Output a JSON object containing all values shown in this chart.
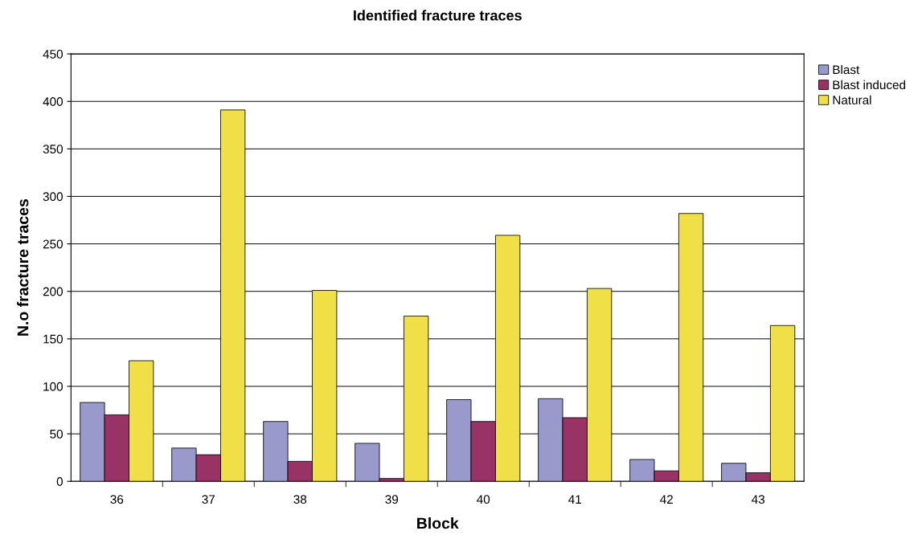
{
  "chart_data": {
    "type": "bar",
    "title": "Identified fracture traces",
    "xlabel": "Block",
    "ylabel": "N.o fracture traces",
    "categories": [
      "36",
      "37",
      "38",
      "39",
      "40",
      "41",
      "42",
      "43"
    ],
    "series": [
      {
        "name": "Blast",
        "color": "#9999cc",
        "values": [
          83,
          35,
          63,
          40,
          86,
          87,
          23,
          19
        ]
      },
      {
        "name": "Blast induced",
        "color": "#993366",
        "values": [
          70,
          28,
          21,
          3,
          63,
          67,
          11,
          9
        ]
      },
      {
        "name": "Natural",
        "color": "#f0df46",
        "values": [
          127,
          391,
          201,
          174,
          259,
          203,
          282,
          164
        ]
      }
    ],
    "ylim": [
      0,
      450
    ],
    "yticks": [
      0,
      50,
      100,
      150,
      200,
      250,
      300,
      350,
      400,
      450
    ],
    "grid": "y",
    "legend": "top right"
  }
}
